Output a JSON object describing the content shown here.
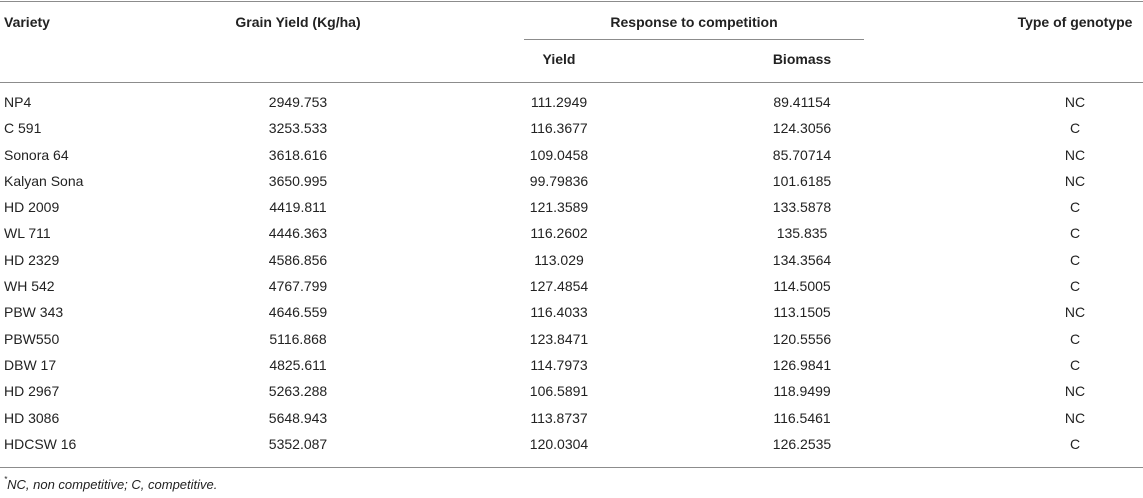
{
  "table": {
    "headers": {
      "variety": "Variety",
      "grain_yield": "Grain Yield (Kg/ha)",
      "response": "Response to competition",
      "yield": "Yield",
      "biomass": "Biomass",
      "type": "Type of genotype"
    },
    "rows": [
      {
        "variety": "NP4",
        "grain_yield": "2949.753",
        "yield": "111.2949",
        "biomass": "89.41154",
        "type": "NC"
      },
      {
        "variety": "C 591",
        "grain_yield": "3253.533",
        "yield": "116.3677",
        "biomass": "124.3056",
        "type": "C"
      },
      {
        "variety": "Sonora 64",
        "grain_yield": "3618.616",
        "yield": "109.0458",
        "biomass": "85.70714",
        "type": "NC"
      },
      {
        "variety": "Kalyan Sona",
        "grain_yield": "3650.995",
        "yield": "99.79836",
        "biomass": "101.6185",
        "type": "NC"
      },
      {
        "variety": "HD 2009",
        "grain_yield": "4419.811",
        "yield": "121.3589",
        "biomass": "133.5878",
        "type": "C"
      },
      {
        "variety": "WL 711",
        "grain_yield": "4446.363",
        "yield": "116.2602",
        "biomass": "135.835",
        "type": "C"
      },
      {
        "variety": "HD 2329",
        "grain_yield": "4586.856",
        "yield": "113.029",
        "biomass": "134.3564",
        "type": "C"
      },
      {
        "variety": "WH 542",
        "grain_yield": "4767.799",
        "yield": "127.4854",
        "biomass": "114.5005",
        "type": "C"
      },
      {
        "variety": "PBW 343",
        "grain_yield": "4646.559",
        "yield": "116.4033",
        "biomass": "113.1505",
        "type": "NC"
      },
      {
        "variety": "PBW550",
        "grain_yield": "5116.868",
        "yield": "123.8471",
        "biomass": "120.5556",
        "type": "C"
      },
      {
        "variety": "DBW 17",
        "grain_yield": "4825.611",
        "yield": "114.7973",
        "biomass": "126.9841",
        "type": "C"
      },
      {
        "variety": "HD 2967",
        "grain_yield": "5263.288",
        "yield": "106.5891",
        "biomass": "118.9499",
        "type": "NC"
      },
      {
        "variety": "HD 3086",
        "grain_yield": "5648.943",
        "yield": "113.8737",
        "biomass": "116.5461",
        "type": "NC"
      },
      {
        "variety": "HDCSW 16",
        "grain_yield": "5352.087",
        "yield": "120.0304",
        "biomass": "126.2535",
        "type": "C"
      }
    ]
  },
  "footnote": {
    "marker": "*",
    "text": "NC, non competitive; C, competitive."
  }
}
